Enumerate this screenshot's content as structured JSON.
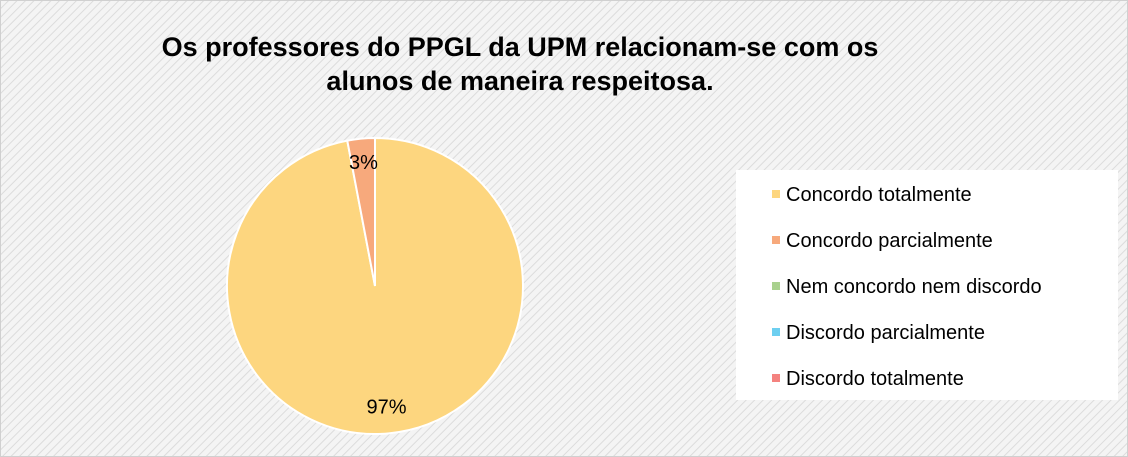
{
  "chart_data": {
    "type": "pie",
    "title": "Os professores do PPGL da UPM relacionam-se com os alunos de maneira respeitosa.",
    "categories": [
      "Concordo totalmente",
      "Concordo parcialmente",
      "Nem concordo nem discordo",
      "Discordo parcialmente",
      "Discordo totalmente"
    ],
    "values": [
      97,
      3,
      0,
      0,
      0
    ],
    "value_labels": [
      "97%",
      "3%",
      null,
      null,
      null
    ],
    "colors": [
      "#fdd67f",
      "#f7a97c",
      "#a9d18e",
      "#6dcff0",
      "#f4827f"
    ],
    "legend": "right"
  }
}
